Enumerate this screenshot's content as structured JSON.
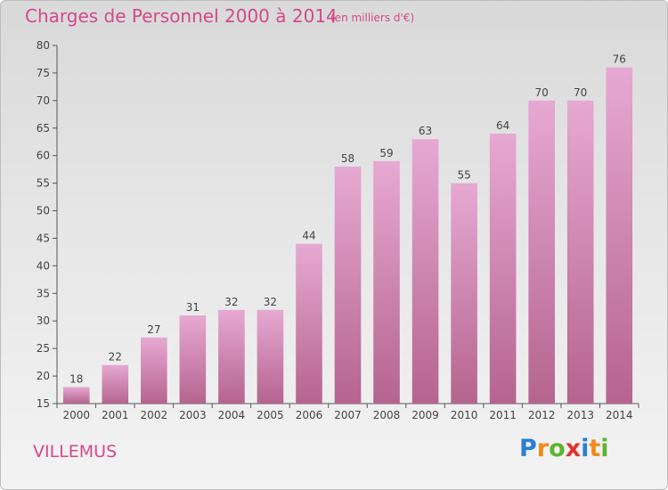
{
  "title": "Charges de Personnel 2000 à 2014",
  "subtitle": "(en milliers d'€)",
  "place": "VILLEMUS",
  "logo": {
    "text": "Proxiti",
    "letters": [
      {
        "ch": "P",
        "color": "#2b7fd4"
      },
      {
        "ch": "r",
        "color": "#f08a1c"
      },
      {
        "ch": "o",
        "color": "#5bb531"
      },
      {
        "ch": "x",
        "color": "#e0332f"
      },
      {
        "ch": "i",
        "color": "#2b7fd4"
      },
      {
        "ch": "t",
        "color": "#f08a1c"
      },
      {
        "ch": "i",
        "color": "#5bb531"
      }
    ]
  },
  "colors": {
    "accent": "#d24a8a",
    "bar_top": "#e6a9d2",
    "bar_bottom": "#b5648f"
  },
  "chart_data": {
    "type": "bar",
    "title": "Charges de Personnel 2000 à 2014",
    "subtitle": "(en milliers d'€)",
    "categories": [
      "2000",
      "2001",
      "2002",
      "2003",
      "2004",
      "2005",
      "2006",
      "2007",
      "2008",
      "2009",
      "2010",
      "2011",
      "2012",
      "2013",
      "2014"
    ],
    "values": [
      18,
      22,
      27,
      31,
      32,
      32,
      44,
      58,
      59,
      63,
      55,
      64,
      70,
      70,
      76
    ],
    "ylim": [
      15,
      80
    ],
    "yticks": [
      15,
      20,
      25,
      30,
      35,
      40,
      45,
      50,
      55,
      60,
      65,
      70,
      75,
      80
    ],
    "xlabel": "",
    "ylabel": "",
    "grid": false,
    "data_labels": true
  }
}
